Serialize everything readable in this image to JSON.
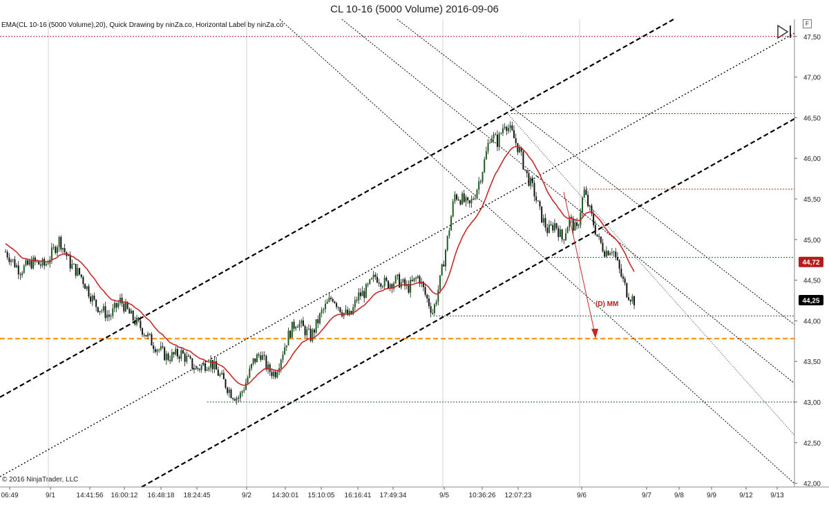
{
  "window": {
    "title": "CL 10-16 (5000 Volume)  2016-09-06"
  },
  "indicator_label": "EMA(CL 10-16 (5000 Volume),20), Quick Drawing by ninZa.co, Horizontal Label by ninZa.co",
  "copyright": "© 2016 NinjaTrader, LLC",
  "toolbar": {
    "f_button": "F"
  },
  "icons": {
    "play_step": "play-step-icon"
  },
  "colors": {
    "background": "#ffffff",
    "candle_up": "#1b5e20",
    "candle_down": "#111111",
    "ema": "#c62828",
    "orange_line": "#ff8c00",
    "resistance": "#b71c1c",
    "support": "#1b5e20",
    "channel": "#000000",
    "arrow": "#c62828",
    "price_badge_red": "#b71c1c",
    "price_badge_black": "#000000"
  },
  "annotations": {
    "mm_label": "(D) MM"
  },
  "chart_data": {
    "type": "candlestick",
    "instrument": "CL 10-16",
    "bar_type": "5000 Volume",
    "y_ticks": [
      "47,50",
      "47,00",
      "46,50",
      "46,00",
      "45,50",
      "45,00",
      "44,50",
      "44,00",
      "43,50",
      "43,00",
      "42,50",
      "42,00"
    ],
    "ylim": [
      42.0,
      47.5
    ],
    "x_ticks": [
      "06:49",
      "9/1",
      "14:41:56",
      "16:00:12",
      "16:48:18",
      "18:24:45",
      "9/2",
      "14:30:01",
      "15:10:05",
      "16:16:41",
      "17:49:34",
      "9/5",
      "10:36:26",
      "12:07:23",
      "9/6",
      "9/7",
      "9/8",
      "9/9",
      "9/12",
      "9/13"
    ],
    "price_badges": [
      {
        "value": "44,72",
        "price": 44.72,
        "color": "#b71c1c"
      },
      {
        "value": "44,25",
        "price": 44.25,
        "color": "#000000"
      }
    ],
    "horizontal_lines": [
      {
        "price": 47.5,
        "style": "dotted",
        "color": "#b71c1c"
      },
      {
        "price": 46.55,
        "style": "dotted",
        "color": "#b71c1c"
      },
      {
        "price": 45.62,
        "style": "dotted",
        "color": "#b71c1c"
      },
      {
        "price": 44.78,
        "style": "dotted",
        "color": "#1b5e20"
      },
      {
        "price": 44.06,
        "style": "dotted",
        "color": "#1b5e20"
      },
      {
        "price": 43.78,
        "style": "dashed",
        "color": "#ff8c00"
      },
      {
        "price": 43.0,
        "style": "dotted",
        "color": "#1b5e20"
      }
    ],
    "price_path": [
      [
        0,
        44.85
      ],
      [
        8,
        44.62
      ],
      [
        15,
        44.72
      ],
      [
        22,
        44.68
      ],
      [
        30,
        45.0
      ],
      [
        36,
        44.7
      ],
      [
        42,
        44.55
      ],
      [
        50,
        44.2
      ],
      [
        58,
        44.05
      ],
      [
        64,
        44.25
      ],
      [
        70,
        44.05
      ],
      [
        76,
        43.9
      ],
      [
        82,
        43.72
      ],
      [
        90,
        43.55
      ],
      [
        98,
        43.6
      ],
      [
        106,
        43.4
      ],
      [
        114,
        43.5
      ],
      [
        120,
        43.3
      ],
      [
        126,
        43.1
      ],
      [
        130,
        43.05
      ],
      [
        134,
        43.25
      ],
      [
        138,
        43.5
      ],
      [
        142,
        43.6
      ],
      [
        146,
        43.4
      ],
      [
        150,
        43.35
      ],
      [
        154,
        43.6
      ],
      [
        158,
        43.85
      ],
      [
        162,
        44.0
      ],
      [
        166,
        43.9
      ],
      [
        170,
        43.8
      ],
      [
        176,
        44.1
      ],
      [
        182,
        44.3
      ],
      [
        188,
        44.1
      ],
      [
        192,
        44.05
      ],
      [
        196,
        44.3
      ],
      [
        200,
        44.35
      ],
      [
        206,
        44.55
      ],
      [
        212,
        44.45
      ],
      [
        218,
        44.5
      ],
      [
        224,
        44.4
      ],
      [
        230,
        44.55
      ],
      [
        234,
        44.3
      ],
      [
        238,
        44.1
      ],
      [
        242,
        44.5
      ],
      [
        246,
        45.0
      ],
      [
        250,
        45.55
      ],
      [
        254,
        45.5
      ],
      [
        258,
        45.4
      ],
      [
        262,
        45.6
      ],
      [
        266,
        45.9
      ],
      [
        270,
        46.3
      ],
      [
        274,
        46.2
      ],
      [
        278,
        46.45
      ],
      [
        282,
        46.3
      ],
      [
        286,
        46.1
      ],
      [
        290,
        45.8
      ],
      [
        294,
        45.6
      ],
      [
        298,
        45.3
      ],
      [
        302,
        45.1
      ],
      [
        306,
        45.2
      ],
      [
        310,
        45.0
      ],
      [
        314,
        45.25
      ],
      [
        318,
        45.1
      ],
      [
        322,
        45.6
      ],
      [
        326,
        45.3
      ],
      [
        330,
        45.0
      ],
      [
        334,
        44.85
      ],
      [
        338,
        44.9
      ],
      [
        342,
        44.6
      ],
      [
        346,
        44.35
      ],
      [
        350,
        44.25
      ]
    ],
    "ema_start": 44.95,
    "ema_period": 20
  }
}
